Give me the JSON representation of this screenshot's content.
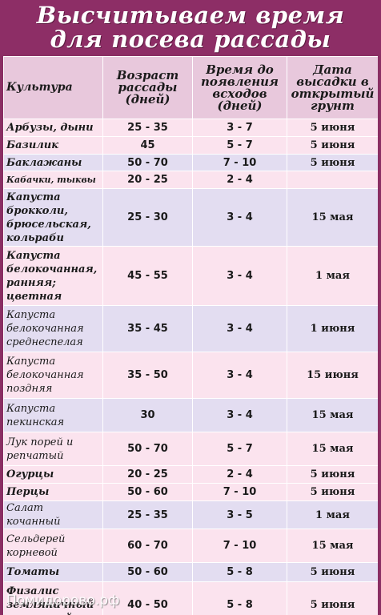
{
  "title": {
    "line1": "Высчитываем время",
    "line2": "для посева рассады"
  },
  "headers": {
    "crop": "Культура",
    "age": "Возраст рассады (дней)",
    "sprout": "Время до появления всходов (дней)",
    "date": "Дата высадки в открытый грунт"
  },
  "rows": [
    {
      "crop": "Арбузы, дыни",
      "age": "25 - 35",
      "sprout": "3 - 7",
      "date": "5 июня"
    },
    {
      "crop": "Базилик",
      "age": "45",
      "sprout": "5 - 7",
      "date": "5 июня"
    },
    {
      "crop": "Баклажаны",
      "age": "50 - 70",
      "sprout": "7 - 10",
      "date": "5 июня"
    },
    {
      "crop": "Кабачки, тыквы",
      "age": "20 - 25",
      "sprout": "2 - 4",
      "date": ""
    },
    {
      "crop": "Капуста брокколи, брюсельская, кольраби",
      "age": "25 - 30",
      "sprout": "3 - 4",
      "date": "15 мая"
    },
    {
      "crop": "Капуста белокочанная, ранняя; цветная",
      "age": "45 - 55",
      "sprout": "3 - 4",
      "date": "1 мая"
    },
    {
      "crop": "Капуста белокочанная среднеспелая",
      "age": "35 - 45",
      "sprout": "3 - 4",
      "date": "1 июня"
    },
    {
      "crop": "Капуста белокочанная поздняя",
      "age": "35 - 50",
      "sprout": "3 - 4",
      "date": "15 июня"
    },
    {
      "crop": "Капуста пекинская",
      "age": "30",
      "sprout": "3 - 4",
      "date": "15 мая"
    },
    {
      "crop": "Лук порей и репчатый",
      "age": "50 - 70",
      "sprout": "5 - 7",
      "date": "15 мая"
    },
    {
      "crop": "Огурцы",
      "age": "20 - 25",
      "sprout": "2 - 4",
      "date": "5 июня"
    },
    {
      "crop": "Перцы",
      "age": "50 - 60",
      "sprout": "7 - 10",
      "date": "5 июня"
    },
    {
      "crop": "Салат кочанный",
      "age": "25 - 35",
      "sprout": "3 - 5",
      "date": "1 мая"
    },
    {
      "crop": "Сельдерей корневой",
      "age": "60 - 70",
      "sprout": "7 - 10",
      "date": "15 мая"
    },
    {
      "crop": "Томаты",
      "age": "50 - 60",
      "sprout": "5 - 8",
      "date": "5 июня"
    },
    {
      "crop": "Физалис земляничный и овощной",
      "age": "40 - 50",
      "sprout": "5 - 8",
      "date": "5 июня"
    }
  ],
  "watermark": "Помидорово.рф"
}
